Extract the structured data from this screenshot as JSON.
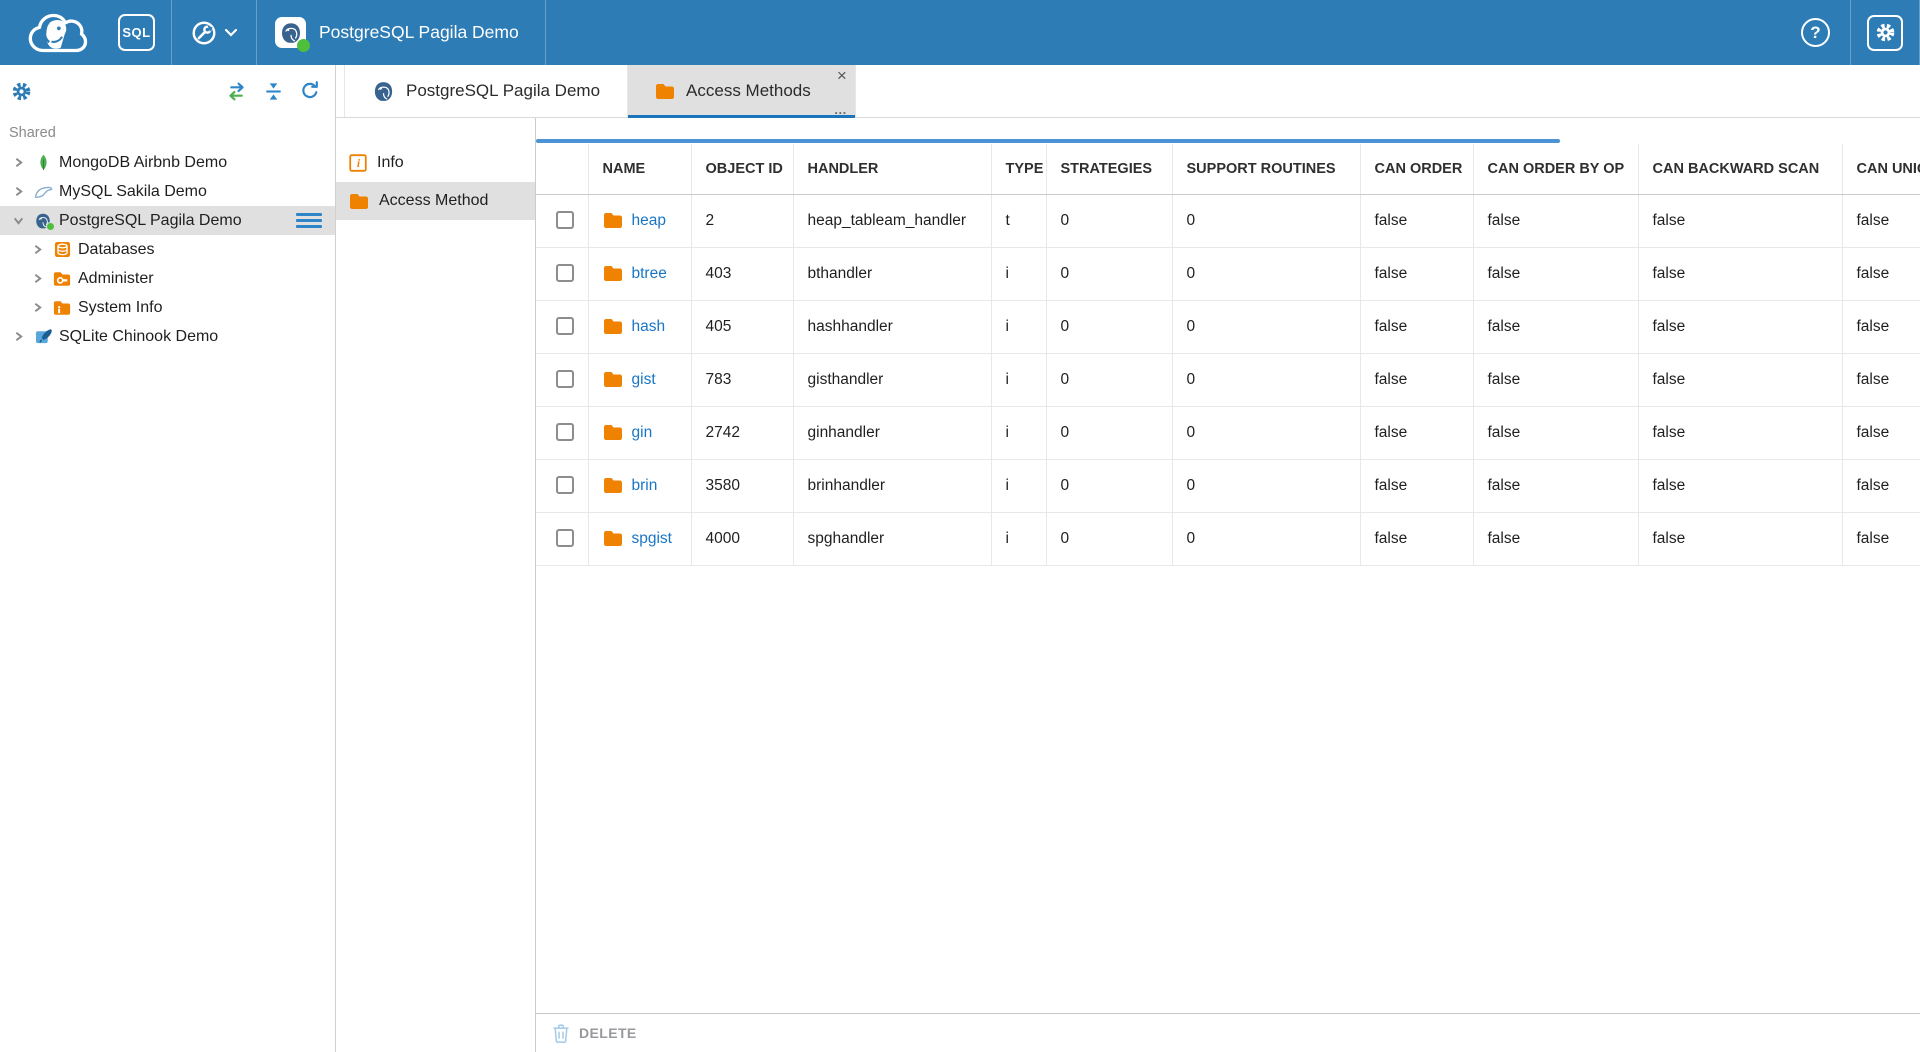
{
  "topbar": {
    "sql_badge": "SQL",
    "connection_label": "PostgreSQL Pagila Demo"
  },
  "icons": {
    "help_glyph": "?",
    "tab_close_glyph": "×",
    "tab_more_glyph": "..."
  },
  "sidebar": {
    "section_label": "Shared",
    "items": [
      {
        "label": "MongoDB Airbnb Demo"
      },
      {
        "label": "MySQL Sakila Demo"
      },
      {
        "label": "PostgreSQL Pagila Demo"
      },
      {
        "label": "Databases"
      },
      {
        "label": "Administer"
      },
      {
        "label": "System Info"
      },
      {
        "label": "SQLite Chinook Demo"
      }
    ]
  },
  "tabs": [
    {
      "label": "PostgreSQL Pagila Demo"
    },
    {
      "label": "Access Methods"
    }
  ],
  "subpanel": {
    "items": [
      {
        "label": "Info"
      },
      {
        "label": "Access Method"
      }
    ]
  },
  "grid": {
    "columns": [
      "NAME",
      "OBJECT ID",
      "HANDLER",
      "TYPE",
      "STRATEGIES",
      "SUPPORT ROUTINES",
      "CAN ORDER",
      "CAN ORDER BY OP",
      "CAN BACKWARD SCAN",
      "CAN UNIQUE"
    ],
    "rows": [
      {
        "name": "heap",
        "object_id": "2",
        "handler": "heap_tableam_handler",
        "type": "t",
        "strategies": "0",
        "support_routines": "0",
        "can_order": "false",
        "can_order_by_op": "false",
        "can_backward_scan": "false",
        "can_unique": "false"
      },
      {
        "name": "btree",
        "object_id": "403",
        "handler": "bthandler",
        "type": "i",
        "strategies": "0",
        "support_routines": "0",
        "can_order": "false",
        "can_order_by_op": "false",
        "can_backward_scan": "false",
        "can_unique": "false"
      },
      {
        "name": "hash",
        "object_id": "405",
        "handler": "hashhandler",
        "type": "i",
        "strategies": "0",
        "support_routines": "0",
        "can_order": "false",
        "can_order_by_op": "false",
        "can_backward_scan": "false",
        "can_unique": "false"
      },
      {
        "name": "gist",
        "object_id": "783",
        "handler": "gisthandler",
        "type": "i",
        "strategies": "0",
        "support_routines": "0",
        "can_order": "false",
        "can_order_by_op": "false",
        "can_backward_scan": "false",
        "can_unique": "false"
      },
      {
        "name": "gin",
        "object_id": "2742",
        "handler": "ginhandler",
        "type": "i",
        "strategies": "0",
        "support_routines": "0",
        "can_order": "false",
        "can_order_by_op": "false",
        "can_backward_scan": "false",
        "can_unique": "false"
      },
      {
        "name": "brin",
        "object_id": "3580",
        "handler": "brinhandler",
        "type": "i",
        "strategies": "0",
        "support_routines": "0",
        "can_order": "false",
        "can_order_by_op": "false",
        "can_backward_scan": "false",
        "can_unique": "false"
      },
      {
        "name": "spgist",
        "object_id": "4000",
        "handler": "spghandler",
        "type": "i",
        "strategies": "0",
        "support_routines": "0",
        "can_order": "false",
        "can_order_by_op": "false",
        "can_backward_scan": "false",
        "can_unique": "false"
      }
    ]
  },
  "footer": {
    "delete_label": "DELETE"
  },
  "colors": {
    "topbar": "#2d7cb5",
    "accent": "#1b75bc",
    "orange": "#ef8200",
    "link": "#1a76c4",
    "selected_bg": "#e0e0e0",
    "status_green": "#4dbf3c",
    "scrollbar_thumb": "#4b93d4"
  }
}
